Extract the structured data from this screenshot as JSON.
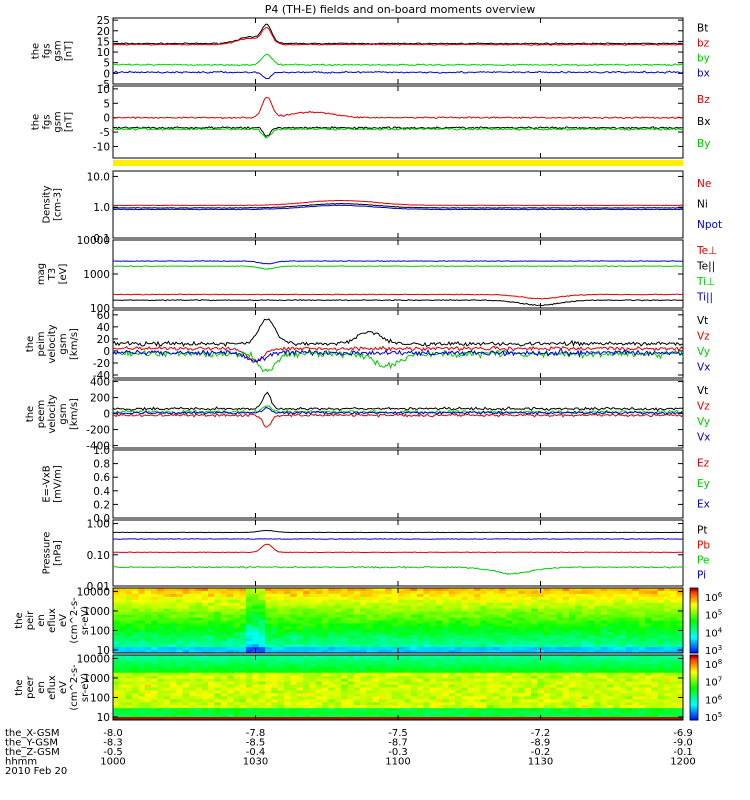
{
  "title": "P4 (TH-E) fields and on-board moments overview",
  "footer": {
    "rows": [
      {
        "label": "the_X-GSM",
        "values": [
          "-8.0",
          "-7.8",
          "-7.5",
          "-7.2",
          "-6.9"
        ]
      },
      {
        "label": "the_Y-GSM",
        "values": [
          "-8.3",
          "-8.5",
          "-8.7",
          "-8.9",
          "-9.0"
        ]
      },
      {
        "label": "the_Z-GSM",
        "values": [
          "-0.5",
          "-0.4",
          "-0.3",
          "-0.2",
          "-0.1"
        ]
      },
      {
        "label": "hhmm",
        "values": [
          "1000",
          "1030",
          "1100",
          "1130",
          "1200"
        ]
      }
    ],
    "date": "2010 Feb 20"
  },
  "colorbars": [
    {
      "ticks": [
        "10^6",
        "10^5",
        "10^4",
        "10^3"
      ]
    },
    {
      "ticks": [
        "10^8",
        "10^7",
        "10^6",
        "10^5"
      ]
    }
  ],
  "chart_data": [
    {
      "type": "line",
      "ylabel": [
        "the",
        "fgs",
        "gsm",
        "[nT]"
      ],
      "ylim": [
        -5,
        26
      ],
      "ticks": [
        "25",
        "20",
        "15",
        "10",
        "5",
        "0",
        "-5"
      ],
      "series": [
        {
          "name": "Bt",
          "color": "#000000",
          "base": 14,
          "noise": 0.4,
          "features": [
            {
              "x": 0.27,
              "amp": 8,
              "w": 0.012
            },
            {
              "x": 0.24,
              "amp": 3,
              "w": 0.03
            }
          ]
        },
        {
          "name": "bz",
          "color": "#dd0000",
          "base": 13.5,
          "noise": 0.4,
          "features": [
            {
              "x": 0.27,
              "amp": 7,
              "w": 0.012
            },
            {
              "x": 0.24,
              "amp": 3,
              "w": 0.03
            }
          ]
        },
        {
          "name": "by",
          "color": "#00cc00",
          "base": 4,
          "noise": 0.5,
          "features": [
            {
              "x": 0.27,
              "amp": 5,
              "w": 0.012
            }
          ]
        },
        {
          "name": "bx",
          "color": "#0000cc",
          "base": 0.5,
          "noise": 0.6,
          "features": [
            {
              "x": 0.27,
              "amp": -3,
              "w": 0.01
            }
          ]
        }
      ]
    },
    {
      "type": "line",
      "ylabel": [
        "the",
        "fgs",
        "gsm",
        "[nT]"
      ],
      "ylim": [
        -14,
        11
      ],
      "ticks": [
        "10",
        "5",
        "0",
        "-5",
        "-10"
      ],
      "series": [
        {
          "name": "Bz",
          "color": "#dd0000",
          "base": 0,
          "noise": 0.4,
          "features": [
            {
              "x": 0.27,
              "amp": 7,
              "w": 0.012
            },
            {
              "x": 0.35,
              "amp": 2,
              "w": 0.05
            }
          ]
        },
        {
          "name": "Bx",
          "color": "#000000",
          "base": -3.5,
          "noise": 0.5,
          "features": [
            {
              "x": 0.27,
              "amp": -3,
              "w": 0.008
            }
          ]
        },
        {
          "name": "By",
          "color": "#00cc00",
          "base": -4,
          "noise": 0.5,
          "features": [
            {
              "x": 0.27,
              "amp": -3,
              "w": 0.01
            }
          ]
        }
      ]
    },
    {
      "type": "line",
      "log": true,
      "ylabel": [
        "Density",
        "[cm-3]"
      ],
      "ylim": [
        0.1,
        15
      ],
      "ticks": [
        "10.0",
        "1.0",
        "0.1"
      ],
      "series": [
        {
          "name": "Ne",
          "color": "#dd0000",
          "base": 1.15,
          "noise": 0.03,
          "features": [
            {
              "x": 0.4,
              "amp": 0.5,
              "w": 0.08
            }
          ]
        },
        {
          "name": "Ni",
          "color": "#000000",
          "base": 0.95,
          "noise": 0.03,
          "features": [
            {
              "x": 0.4,
              "amp": 0.35,
              "w": 0.08
            }
          ]
        },
        {
          "name": "Npot",
          "color": "#0000cc",
          "base": 0.85,
          "noise": 0.03,
          "features": [
            {
              "x": 0.4,
              "amp": 0.3,
              "w": 0.08
            }
          ]
        }
      ]
    },
    {
      "type": "line",
      "log": true,
      "ylabel": [
        "mag",
        "T3",
        "[eV]"
      ],
      "ylim": [
        100,
        10000
      ],
      "ticks": [
        "10000",
        "1000",
        "100"
      ],
      "series": [
        {
          "name": "Te⊥",
          "color": "#dd0000",
          "base": 250,
          "noise": 10,
          "features": [
            {
              "x": 0.75,
              "amp": -60,
              "w": 0.05
            }
          ]
        },
        {
          "name": "Te||",
          "color": "#000000",
          "base": 170,
          "noise": 8,
          "features": [
            {
              "x": 0.75,
              "amp": -50,
              "w": 0.05
            }
          ]
        },
        {
          "name": "Ti⊥",
          "color": "#00cc00",
          "base": 1700,
          "noise": 60,
          "features": [
            {
              "x": 0.27,
              "amp": -300,
              "w": 0.02
            }
          ]
        },
        {
          "name": "Ti||",
          "color": "#0000cc",
          "base": 2400,
          "noise": 70,
          "features": [
            {
              "x": 0.27,
              "amp": -400,
              "w": 0.02
            }
          ]
        }
      ]
    },
    {
      "type": "line",
      "ylabel": [
        "the",
        "peim",
        "velocity",
        "gsm",
        "[km/s]"
      ],
      "ylim": [
        -45,
        68
      ],
      "ticks": [
        "60",
        "40",
        "20",
        "0",
        "-20",
        "-40"
      ],
      "series": [
        {
          "name": "Vt",
          "color": "#000000",
          "base": 12,
          "noise": 5,
          "features": [
            {
              "x": 0.27,
              "amp": 40,
              "w": 0.02
            },
            {
              "x": 0.45,
              "amp": 20,
              "w": 0.03
            }
          ]
        },
        {
          "name": "Vz",
          "color": "#dd0000",
          "base": 4,
          "noise": 5,
          "features": [
            {
              "x": 0.25,
              "amp": -20,
              "w": 0.02
            }
          ]
        },
        {
          "name": "Vy",
          "color": "#00cc00",
          "base": -5,
          "noise": 8,
          "features": [
            {
              "x": 0.27,
              "amp": -30,
              "w": 0.02
            },
            {
              "x": 0.48,
              "amp": -20,
              "w": 0.03
            }
          ]
        },
        {
          "name": "Vx",
          "color": "#0000cc",
          "base": -3,
          "noise": 6,
          "features": [
            {
              "x": 0.25,
              "amp": -15,
              "w": 0.02
            }
          ]
        }
      ]
    },
    {
      "type": "line",
      "ylabel": [
        "the",
        "peem",
        "velocity",
        "gsm",
        "[km/s]"
      ],
      "ylim": [
        -430,
        420
      ],
      "ticks": [
        "400",
        "200",
        "0",
        "-200",
        "-400"
      ],
      "series": [
        {
          "name": "Vt",
          "color": "#000000",
          "base": 60,
          "noise": 25,
          "features": [
            {
              "x": 0.27,
              "amp": 200,
              "w": 0.01
            }
          ]
        },
        {
          "name": "Vz",
          "color": "#dd0000",
          "base": -20,
          "noise": 25,
          "features": [
            {
              "x": 0.27,
              "amp": -150,
              "w": 0.01
            }
          ]
        },
        {
          "name": "Vy",
          "color": "#00cc00",
          "base": 20,
          "noise": 30,
          "features": [
            {
              "x": 0.27,
              "amp": 80,
              "w": 0.01
            }
          ]
        },
        {
          "name": "Vx",
          "color": "#0000cc",
          "base": 10,
          "noise": 25,
          "features": [
            {
              "x": 0.27,
              "amp": 60,
              "w": 0.01
            }
          ]
        }
      ]
    },
    {
      "type": "line",
      "ylabel": [
        "E=-VxB",
        "[mV/m]"
      ],
      "ylim": [
        0,
        1
      ],
      "ticks": [
        "1.0",
        "0.8",
        "0.6",
        "0.4",
        "0.2",
        "0.0"
      ],
      "series": [
        {
          "name": "Ez",
          "color": "#dd0000"
        },
        {
          "name": "Ey",
          "color": "#00cc00"
        },
        {
          "name": "Ex",
          "color": "#0000cc"
        }
      ]
    },
    {
      "type": "line",
      "log": true,
      "ylabel": [
        "Pressure",
        "[nPa]"
      ],
      "ylim": [
        0.01,
        1.3
      ],
      "ticks": [
        "1.00",
        "0.10",
        "0.01"
      ],
      "series": [
        {
          "name": "Pt",
          "color": "#000000",
          "base": 0.52,
          "noise": 0.01,
          "features": [
            {
              "x": 0.27,
              "amp": 0.08,
              "w": 0.02
            }
          ]
        },
        {
          "name": "Pb",
          "color": "#dd0000",
          "base": 0.12,
          "noise": 0.004,
          "features": [
            {
              "x": 0.27,
              "amp": 0.1,
              "w": 0.012
            }
          ]
        },
        {
          "name": "Pe",
          "color": "#00cc00",
          "base": 0.04,
          "noise": 0.003,
          "features": [
            {
              "x": 0.7,
              "amp": -0.015,
              "w": 0.05
            }
          ]
        },
        {
          "name": "Pi",
          "color": "#0000cc",
          "base": 0.32,
          "noise": 0.01,
          "features": []
        }
      ]
    },
    {
      "type": "heatmap",
      "log": true,
      "ylabel": [
        "the",
        "peir",
        "en",
        "eflux",
        "eV",
        "(cm^2-s-",
        "sr-eV)"
      ],
      "ylim": [
        7,
        15000
      ],
      "ticks": [
        "10000",
        "1000",
        "100",
        "10"
      ]
    },
    {
      "type": "heatmap",
      "log": true,
      "ylabel": [
        "the",
        "peer",
        "en",
        "eflux",
        "eV",
        "(cm^2-s-",
        "sr-eV)"
      ],
      "ylim": [
        7,
        15000
      ],
      "ticks": [
        "10000",
        "1000",
        "100",
        "10"
      ]
    }
  ]
}
